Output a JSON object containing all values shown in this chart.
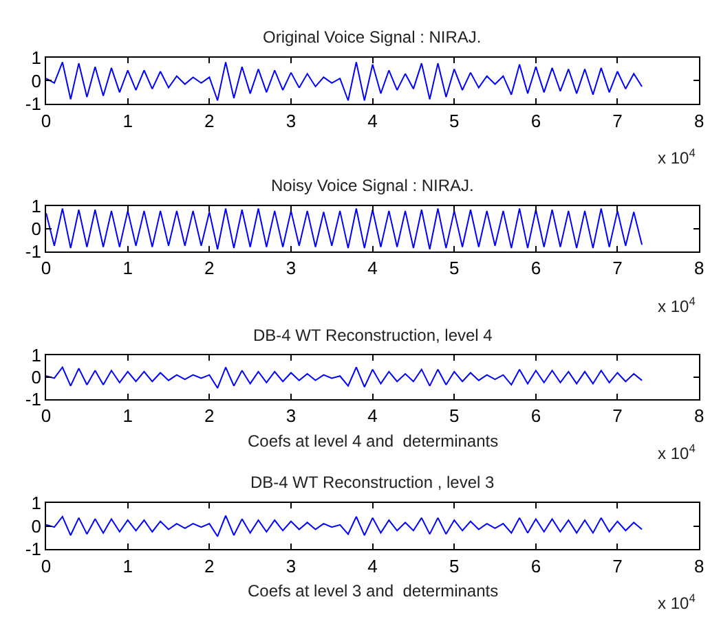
{
  "chart_data": [
    {
      "type": "line",
      "title": "Original Voice Signal : NIRAJ.",
      "color": "#0000ff",
      "xlim": [
        0,
        8
      ],
      "ylim": [
        -1,
        1
      ],
      "yticks": [
        -1,
        0,
        1
      ],
      "xticks": [
        0,
        1,
        2,
        3,
        4,
        5,
        6,
        7,
        8
      ],
      "annotations": [
        "x 10$^{4}$"
      ],
      "x": [
        0,
        0.1,
        0.2,
        0.3,
        0.4,
        0.5,
        0.6,
        0.7,
        0.8,
        0.9,
        1,
        1.1,
        1.2,
        1.3,
        1.4,
        1.5,
        1.6,
        1.7,
        1.8,
        1.9,
        2,
        2.1,
        2.2,
        2.3,
        2.4,
        2.5,
        2.6,
        2.7,
        2.8,
        2.9,
        3,
        3.1,
        3.2,
        3.3,
        3.4,
        3.5,
        3.6,
        3.7,
        3.8,
        3.9,
        4,
        4.1,
        4.2,
        4.3,
        4.4,
        4.5,
        4.6,
        4.7,
        4.8,
        4.9,
        5,
        5.1,
        5.2,
        5.3,
        5.4,
        5.5,
        5.6,
        5.7,
        5.8,
        5.9,
        6,
        6.1,
        6.2,
        6.3,
        6.4,
        6.5,
        6.6,
        6.7,
        6.8,
        6.9,
        7,
        7.1,
        7.2,
        7.3
      ],
      "values": [
        0.1,
        -0.1,
        0.8,
        -0.8,
        0.75,
        -0.7,
        0.6,
        -0.65,
        0.55,
        -0.5,
        0.45,
        -0.4,
        0.45,
        -0.35,
        0.4,
        -0.3,
        0.2,
        -0.15,
        0.15,
        -0.1,
        0.15,
        -0.85,
        0.8,
        -0.75,
        0.6,
        -0.55,
        0.5,
        -0.5,
        0.45,
        -0.4,
        0.35,
        -0.3,
        0.3,
        -0.25,
        0.15,
        -0.1,
        0.1,
        -0.85,
        0.8,
        -0.85,
        0.7,
        -0.55,
        0.45,
        -0.4,
        0.3,
        -0.35,
        0.75,
        -0.8,
        0.75,
        -0.7,
        0.5,
        -0.4,
        0.35,
        -0.3,
        0.2,
        -0.15,
        0.2,
        -0.6,
        0.7,
        -0.55,
        0.6,
        -0.5,
        0.55,
        -0.45,
        0.5,
        -0.55,
        0.5,
        -0.6,
        0.55,
        -0.5,
        0.4,
        -0.35,
        0.3,
        -0.25
      ]
    },
    {
      "type": "line",
      "title": "Noisy Voice Signal : NIRAJ.",
      "color": "#0000ff",
      "xlim": [
        0,
        8
      ],
      "ylim": [
        -1,
        1
      ],
      "yticks": [
        -1,
        0,
        1
      ],
      "xticks": [
        0,
        1,
        2,
        3,
        4,
        5,
        6,
        7,
        8
      ],
      "annotations": [
        "x 10$^{4}$"
      ],
      "x": [
        0,
        0.1,
        0.2,
        0.3,
        0.4,
        0.5,
        0.6,
        0.7,
        0.8,
        0.9,
        1,
        1.1,
        1.2,
        1.3,
        1.4,
        1.5,
        1.6,
        1.7,
        1.8,
        1.9,
        2,
        2.1,
        2.2,
        2.3,
        2.4,
        2.5,
        2.6,
        2.7,
        2.8,
        2.9,
        3,
        3.1,
        3.2,
        3.3,
        3.4,
        3.5,
        3.6,
        3.7,
        3.8,
        3.9,
        4,
        4.1,
        4.2,
        4.3,
        4.4,
        4.5,
        4.6,
        4.7,
        4.8,
        4.9,
        5,
        5.1,
        5.2,
        5.3,
        5.4,
        5.5,
        5.6,
        5.7,
        5.8,
        5.9,
        6,
        6.1,
        6.2,
        6.3,
        6.4,
        6.5,
        6.6,
        6.7,
        6.8,
        6.9,
        7,
        7.1,
        7.2,
        7.3
      ],
      "values": [
        0.7,
        -0.75,
        0.9,
        -0.85,
        0.85,
        -0.8,
        0.85,
        -0.8,
        0.8,
        -0.8,
        0.8,
        -0.75,
        0.8,
        -0.8,
        0.8,
        -0.75,
        0.8,
        -0.75,
        0.8,
        -0.75,
        0.75,
        -0.9,
        0.9,
        -0.85,
        0.85,
        -0.8,
        0.9,
        -0.8,
        0.8,
        -0.8,
        0.8,
        -0.75,
        0.8,
        -0.8,
        0.75,
        -0.75,
        0.8,
        -0.85,
        0.9,
        -0.85,
        0.85,
        -0.8,
        0.8,
        -0.8,
        0.8,
        -0.85,
        0.85,
        -0.9,
        0.9,
        -0.85,
        0.8,
        -0.8,
        0.85,
        -0.8,
        0.8,
        -0.75,
        0.8,
        -0.85,
        0.9,
        -0.85,
        0.85,
        -0.8,
        0.85,
        -0.8,
        0.8,
        -0.85,
        0.8,
        -0.85,
        0.9,
        -0.8,
        0.8,
        -0.75,
        0.75,
        -0.7
      ]
    },
    {
      "type": "line",
      "title": "DB-4 WT Reconstruction, level 4",
      "xlabel": "Coefs at level 4 and  determinants",
      "color": "#0000ff",
      "xlim": [
        0,
        8
      ],
      "ylim": [
        -1,
        1
      ],
      "yticks": [
        -1,
        0,
        1
      ],
      "xticks": [
        0,
        1,
        2,
        3,
        4,
        5,
        6,
        7,
        8
      ],
      "annotations": [
        "x 10$^{4}$"
      ],
      "x": [
        0,
        0.1,
        0.2,
        0.3,
        0.4,
        0.5,
        0.6,
        0.7,
        0.8,
        0.9,
        1,
        1.1,
        1.2,
        1.3,
        1.4,
        1.5,
        1.6,
        1.7,
        1.8,
        1.9,
        2,
        2.1,
        2.2,
        2.3,
        2.4,
        2.5,
        2.6,
        2.7,
        2.8,
        2.9,
        3,
        3.1,
        3.2,
        3.3,
        3.4,
        3.5,
        3.6,
        3.7,
        3.8,
        3.9,
        4,
        4.1,
        4.2,
        4.3,
        4.4,
        4.5,
        4.6,
        4.7,
        4.8,
        4.9,
        5,
        5.1,
        5.2,
        5.3,
        5.4,
        5.5,
        5.6,
        5.7,
        5.8,
        5.9,
        6,
        6.1,
        6.2,
        6.3,
        6.4,
        6.5,
        6.6,
        6.7,
        6.8,
        6.9,
        7,
        7.1,
        7.2,
        7.3
      ],
      "values": [
        0.05,
        -0.05,
        0.45,
        -0.4,
        0.4,
        -0.35,
        0.3,
        -0.35,
        0.3,
        -0.25,
        0.25,
        -0.2,
        0.25,
        -0.2,
        0.2,
        -0.15,
        0.1,
        -0.1,
        0.1,
        -0.05,
        0.1,
        -0.5,
        0.45,
        -0.4,
        0.3,
        -0.3,
        0.25,
        -0.25,
        0.25,
        -0.2,
        0.2,
        -0.15,
        0.15,
        -0.15,
        0.1,
        -0.05,
        0.05,
        -0.4,
        0.45,
        -0.45,
        0.35,
        -0.3,
        0.25,
        -0.2,
        0.15,
        -0.2,
        0.35,
        -0.4,
        0.35,
        -0.35,
        0.25,
        -0.2,
        0.2,
        -0.15,
        0.1,
        -0.1,
        0.1,
        -0.35,
        0.35,
        -0.3,
        0.3,
        -0.25,
        0.3,
        -0.25,
        0.25,
        -0.3,
        0.25,
        -0.3,
        0.3,
        -0.25,
        0.2,
        -0.2,
        0.15,
        -0.15
      ]
    },
    {
      "type": "line",
      "title": "DB-4 WT Reconstruction , level 3",
      "xlabel": "Coefs at level 3 and  determinants",
      "color": "#0000ff",
      "xlim": [
        0,
        8
      ],
      "ylim": [
        -1,
        1
      ],
      "yticks": [
        -1,
        0,
        1
      ],
      "xticks": [
        0,
        1,
        2,
        3,
        4,
        5,
        6,
        7,
        8
      ],
      "annotations": [
        "x 10$^{4}$"
      ],
      "x": [
        0,
        0.1,
        0.2,
        0.3,
        0.4,
        0.5,
        0.6,
        0.7,
        0.8,
        0.9,
        1,
        1.1,
        1.2,
        1.3,
        1.4,
        1.5,
        1.6,
        1.7,
        1.8,
        1.9,
        2,
        2.1,
        2.2,
        2.3,
        2.4,
        2.5,
        2.6,
        2.7,
        2.8,
        2.9,
        3,
        3.1,
        3.2,
        3.3,
        3.4,
        3.5,
        3.6,
        3.7,
        3.8,
        3.9,
        4,
        4.1,
        4.2,
        4.3,
        4.4,
        4.5,
        4.6,
        4.7,
        4.8,
        4.9,
        5,
        5.1,
        5.2,
        5.3,
        5.4,
        5.5,
        5.6,
        5.7,
        5.8,
        5.9,
        6,
        6.1,
        6.2,
        6.3,
        6.4,
        6.5,
        6.6,
        6.7,
        6.8,
        6.9,
        7,
        7.1,
        7.2,
        7.3
      ],
      "values": [
        0.05,
        -0.05,
        0.4,
        -0.4,
        0.35,
        -0.35,
        0.3,
        -0.3,
        0.3,
        -0.25,
        0.25,
        -0.2,
        0.25,
        -0.25,
        0.2,
        -0.15,
        0.1,
        -0.1,
        0.1,
        -0.05,
        0.1,
        -0.45,
        0.45,
        -0.4,
        0.3,
        -0.3,
        0.25,
        -0.25,
        0.25,
        -0.2,
        0.2,
        -0.15,
        0.15,
        -0.15,
        0.1,
        -0.05,
        0.05,
        -0.35,
        0.4,
        -0.4,
        0.35,
        -0.3,
        0.25,
        -0.2,
        0.15,
        -0.2,
        0.35,
        -0.35,
        0.35,
        -0.35,
        0.25,
        -0.2,
        0.2,
        -0.15,
        0.1,
        -0.1,
        0.1,
        -0.3,
        0.35,
        -0.3,
        0.3,
        -0.25,
        0.3,
        -0.25,
        0.25,
        -0.3,
        0.25,
        -0.3,
        0.35,
        -0.25,
        0.2,
        -0.2,
        0.15,
        -0.15
      ]
    }
  ]
}
